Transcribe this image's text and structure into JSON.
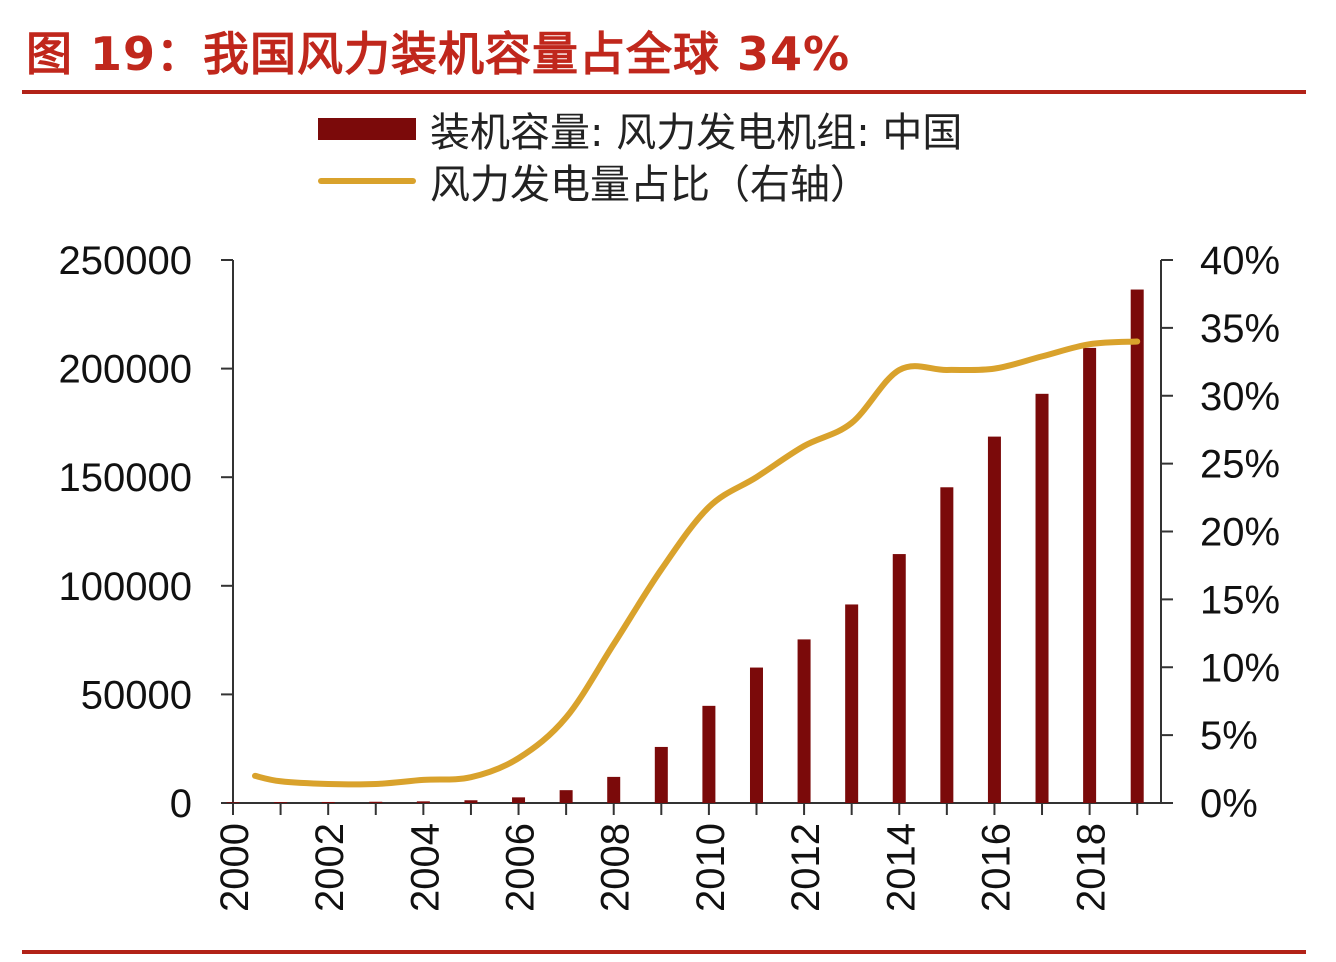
{
  "title": "图 19：我国风力装机容量占全球 34%",
  "colors": {
    "accent": "#c0271c",
    "bar": "#7b0a0a",
    "line": "#d9a22c"
  },
  "chart_data": {
    "type": "bar",
    "title": "图 19：我国风力装机容量占全球 34%",
    "legend_placement": "top",
    "grid": false,
    "x": [
      2000,
      2001,
      2002,
      2003,
      2004,
      2005,
      2006,
      2007,
      2008,
      2009,
      2010,
      2011,
      2012,
      2013,
      2014,
      2015,
      2016,
      2017,
      2018,
      2019
    ],
    "x_tick_labels": [
      "2000",
      "2002",
      "2004",
      "2006",
      "2008",
      "2010",
      "2012",
      "2014",
      "2016",
      "2018"
    ],
    "y_left": {
      "ylim": [
        0,
        250000
      ],
      "ticks": [
        "0",
        "50000",
        "100000",
        "150000",
        "200000",
        "250000"
      ]
    },
    "y_right": {
      "ylim": [
        0,
        40
      ],
      "ticks": [
        "0%",
        "5%",
        "10%",
        "15%",
        "20%",
        "25%",
        "30%",
        "35%",
        "40%"
      ]
    },
    "series": [
      {
        "name": "装机容量: 风力发电机组: 中国",
        "type": "bar",
        "axis": "left",
        "values": [
          340,
          400,
          470,
          570,
          760,
          1260,
          2600,
          5910,
          12020,
          25810,
          44730,
          62360,
          75320,
          91410,
          114610,
          145360,
          168690,
          188390,
          209530,
          236400
        ]
      },
      {
        "name": "风力发电量占比（右轴）",
        "type": "line",
        "axis": "right",
        "values": [
          2.0,
          1.6,
          1.4,
          1.4,
          1.7,
          1.9,
          3.3,
          6.3,
          11.7,
          17.2,
          21.8,
          24.0,
          26.3,
          28.0,
          31.9,
          31.9,
          32.0,
          32.9,
          33.8,
          34.0
        ]
      }
    ]
  }
}
